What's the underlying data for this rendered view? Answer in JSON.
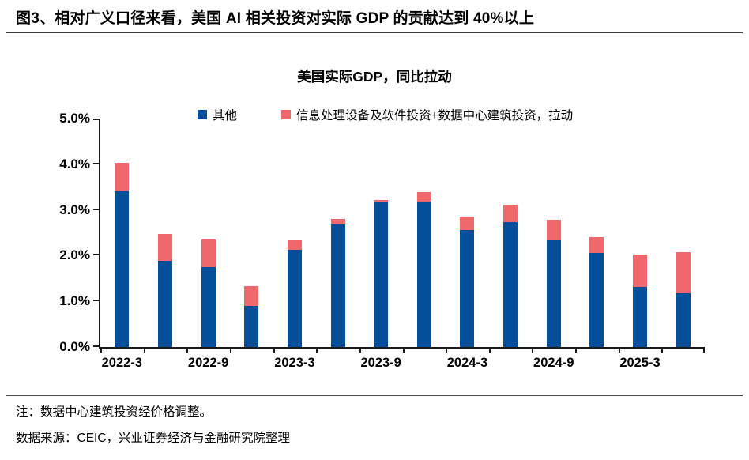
{
  "figure_title": "图3、相对广义口径来看，美国 AI 相关投资对实际 GDP 的贡献达到 40%以上",
  "chart_data": {
    "type": "bar",
    "stacked": true,
    "title": "美国实际GDP，同比拉动",
    "categories": [
      "2022-3",
      "2022-6",
      "2022-9",
      "2022-12",
      "2023-3",
      "2023-6",
      "2023-9",
      "2023-12",
      "2024-3",
      "2024-6",
      "2024-9",
      "2024-12",
      "2025-3",
      "2025-6"
    ],
    "x_label_every": 2,
    "series": [
      {
        "name": "其他",
        "color": "#054e99",
        "values": [
          3.41,
          1.89,
          1.75,
          0.9,
          2.12,
          2.68,
          3.16,
          3.18,
          2.56,
          2.73,
          2.34,
          2.06,
          1.32,
          1.18
        ]
      },
      {
        "name": "信息处理设备及软件投资+数据中心建筑投资，拉动",
        "color": "#ee686c",
        "values": [
          0.62,
          0.58,
          0.61,
          0.43,
          0.21,
          0.12,
          0.06,
          0.21,
          0.3,
          0.39,
          0.45,
          0.35,
          0.7,
          0.9
        ]
      }
    ],
    "ylim": [
      0,
      5
    ],
    "yticks": [
      "0.0%",
      "1.0%",
      "2.0%",
      "3.0%",
      "4.0%",
      "5.0%"
    ],
    "xlabel": "",
    "ylabel": "",
    "grid": false,
    "legend_position": "top"
  },
  "footer": {
    "note": "注：数据中心建筑投资经价格调整。",
    "source": "数据来源：CEIC，兴业证券经济与金融研究院整理"
  }
}
